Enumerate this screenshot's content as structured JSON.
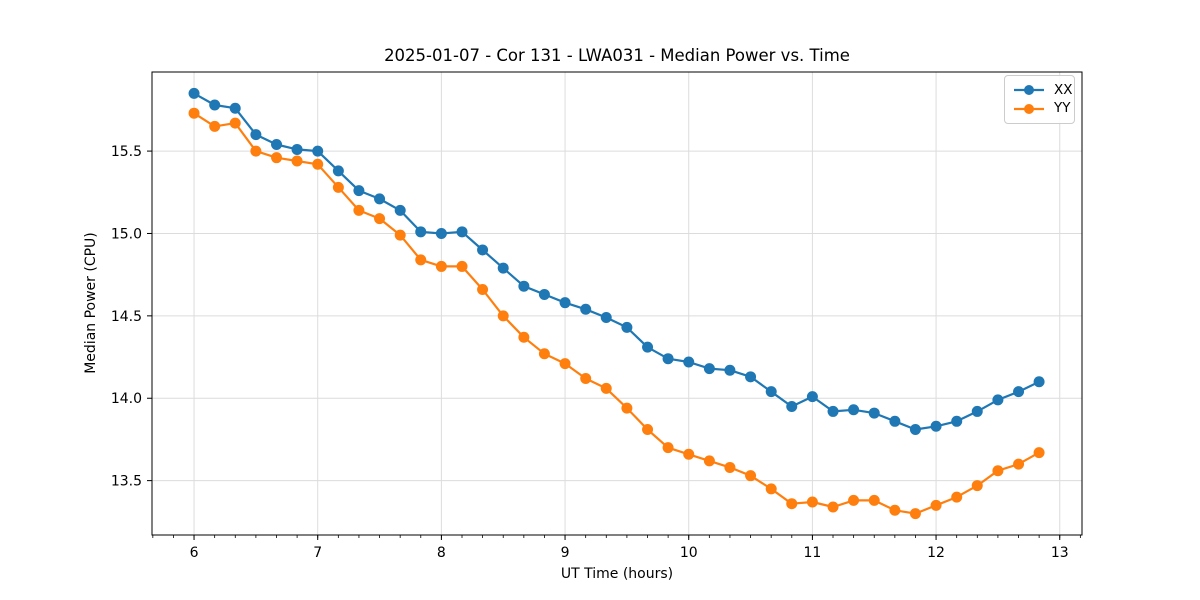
{
  "chart_data": {
    "type": "line",
    "title": "2025-01-07 - Cor 131 - LWA031 - Median Power vs. Time",
    "xlabel": "UT Time (hours)",
    "ylabel": "Median Power (CPU)",
    "xlim": [
      5.66,
      13.18
    ],
    "ylim": [
      13.17,
      15.98
    ],
    "x_ticks": [
      6,
      7,
      8,
      9,
      10,
      11,
      12,
      13
    ],
    "x_tick_labels": [
      "6",
      "7",
      "8",
      "9",
      "10",
      "11",
      "12",
      "13"
    ],
    "x_minor_tick_step": 0.166667,
    "y_ticks": [
      13.5,
      14.0,
      14.5,
      15.0,
      15.5
    ],
    "y_tick_labels": [
      "13.5",
      "14.0",
      "14.5",
      "15.0",
      "15.5"
    ],
    "grid": "major",
    "grid_color": "#dcdcdc",
    "spine_color": "#000000",
    "background_color": "#ffffff",
    "legend_position": "upper-right",
    "x": [
      6.0,
      6.167,
      6.333,
      6.5,
      6.667,
      6.833,
      7.0,
      7.167,
      7.333,
      7.5,
      7.667,
      7.833,
      8.0,
      8.167,
      8.333,
      8.5,
      8.667,
      8.833,
      9.0,
      9.167,
      9.333,
      9.5,
      9.667,
      9.833,
      10.0,
      10.167,
      10.333,
      10.5,
      10.667,
      10.833,
      11.0,
      11.167,
      11.333,
      11.5,
      11.667,
      11.833,
      12.0,
      12.167,
      12.333,
      12.5,
      12.667,
      12.833
    ],
    "series": [
      {
        "name": "XX",
        "color": "#1f77b4",
        "values": [
          15.85,
          15.78,
          15.76,
          15.6,
          15.54,
          15.51,
          15.5,
          15.38,
          15.26,
          15.21,
          15.14,
          15.01,
          15.0,
          15.01,
          14.9,
          14.79,
          14.68,
          14.63,
          14.58,
          14.54,
          14.49,
          14.43,
          14.31,
          14.24,
          14.22,
          14.18,
          14.17,
          14.13,
          14.04,
          13.95,
          14.01,
          13.92,
          13.93,
          13.91,
          13.86,
          13.81,
          13.83,
          13.86,
          13.92,
          13.99,
          14.04,
          14.1
        ]
      },
      {
        "name": "YY",
        "color": "#ff7f0e",
        "values": [
          15.73,
          15.65,
          15.67,
          15.5,
          15.46,
          15.44,
          15.42,
          15.28,
          15.14,
          15.09,
          14.99,
          14.84,
          14.8,
          14.8,
          14.66,
          14.5,
          14.37,
          14.27,
          14.21,
          14.12,
          14.06,
          13.94,
          13.81,
          13.7,
          13.66,
          13.62,
          13.58,
          13.53,
          13.45,
          13.36,
          13.37,
          13.34,
          13.38,
          13.38,
          13.32,
          13.3,
          13.35,
          13.4,
          13.47,
          13.56,
          13.6,
          13.67
        ]
      }
    ]
  }
}
